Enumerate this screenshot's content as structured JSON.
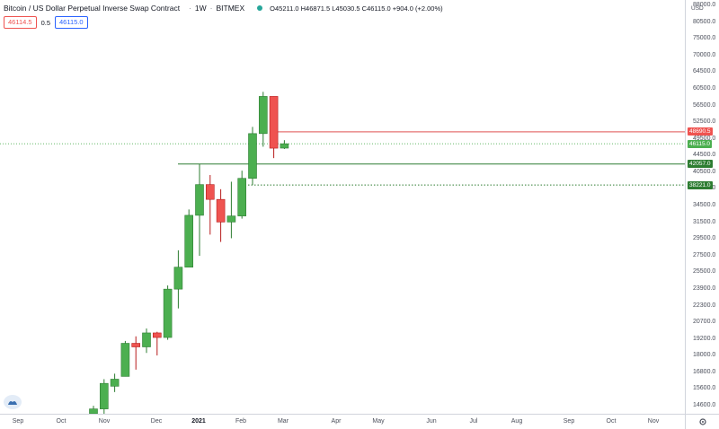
{
  "header": {
    "title": "Bitcoin / US Dollar Perpetual Inverse Swap Contract",
    "interval": "1W",
    "exchange": "BITMEX",
    "ohlc": {
      "open": "O45211.0",
      "high": "H46871.5",
      "low": "L45030.5",
      "close": "C46115.0",
      "change": "+904.0 (+2.00%)"
    }
  },
  "trade": {
    "sell_price": "46114.5",
    "spread": "0.5",
    "buy_price": "46115.0"
  },
  "price_axis": {
    "unit": "USD",
    "ticks": [
      "88000.0",
      "80500.0",
      "75000.0",
      "70000.0",
      "64500.0",
      "60500.0",
      "56500.0",
      "52500.0",
      "49500.0",
      "44500.0",
      "40500.0",
      "37500.0",
      "34500.0",
      "31500.0",
      "29500.0",
      "27500.0",
      "25500.0",
      "23900.0",
      "22300.0",
      "20700.0",
      "19200.0",
      "18000.0",
      "16800.0",
      "15600.0",
      "14600.0"
    ],
    "tags": [
      {
        "label": "48690.5",
        "color": "#ef5350"
      },
      {
        "label": "46115.0",
        "color": "#4caf50"
      },
      {
        "label": "42057.0",
        "color": "#2e7d32"
      },
      {
        "label": "38221.0",
        "color": "#2e7d32"
      }
    ]
  },
  "time_axis": {
    "labels": [
      "Sep",
      "Oct",
      "Nov",
      "Dec",
      "2021",
      "Feb",
      "Mar",
      "Apr",
      "May",
      "Jun",
      "Jul",
      "Aug",
      "Sep",
      "Oct",
      "Nov"
    ]
  },
  "colors": {
    "up": "#4caf50",
    "up_border": "#2e7d32",
    "down": "#ef5350",
    "down_border": "#b71c1c",
    "resistance_line": "#e57373",
    "support_line": "#2e7d32",
    "current_price_line": "#4caf50"
  },
  "chart_data": {
    "type": "candlestick",
    "interval": "1W",
    "candles": [
      {
        "o": 13500,
        "h": 14000,
        "l": 13400,
        "c": 13800
      },
      {
        "o": 13800,
        "h": 15800,
        "l": 13300,
        "c": 15500
      },
      {
        "o": 15300,
        "h": 16200,
        "l": 14900,
        "c": 15800
      },
      {
        "o": 16000,
        "h": 18800,
        "l": 16000,
        "c": 18600
      },
      {
        "o": 18600,
        "h": 19200,
        "l": 16500,
        "c": 18300
      },
      {
        "o": 18300,
        "h": 19900,
        "l": 17800,
        "c": 19500
      },
      {
        "o": 19500,
        "h": 19600,
        "l": 17600,
        "c": 19100
      },
      {
        "o": 19100,
        "h": 24200,
        "l": 18900,
        "c": 23800
      },
      {
        "o": 23800,
        "h": 28400,
        "l": 21800,
        "c": 26300
      },
      {
        "o": 26300,
        "h": 34200,
        "l": 26300,
        "c": 33300
      },
      {
        "o": 33300,
        "h": 42057,
        "l": 27700,
        "c": 38300
      },
      {
        "o": 38300,
        "h": 40000,
        "l": 30500,
        "c": 35800
      },
      {
        "o": 35800,
        "h": 37500,
        "l": 29500,
        "c": 32300
      },
      {
        "o": 32300,
        "h": 38800,
        "l": 30000,
        "c": 33200
      },
      {
        "o": 33200,
        "h": 40800,
        "l": 32800,
        "c": 39400
      },
      {
        "o": 39400,
        "h": 49800,
        "l": 38221,
        "c": 48300
      },
      {
        "o": 48300,
        "h": 58400,
        "l": 45500,
        "c": 57200
      },
      {
        "o": 57200,
        "h": 57200,
        "l": 43200,
        "c": 45200
      },
      {
        "o": 45211,
        "h": 46871.5,
        "l": 45030.5,
        "c": 46115
      }
    ],
    "horizontal_lines": [
      48690.5,
      46115.0,
      42057.0,
      38221.0
    ],
    "price_scale": "log"
  }
}
